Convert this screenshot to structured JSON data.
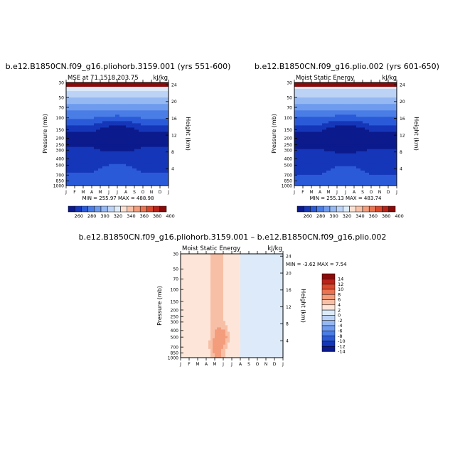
{
  "panels": [
    {
      "title": "b.e12.B1850CN.f09_g16.pliohorb.3159.001 (yrs 551-600)",
      "left_string": "MSE at 71.1518,203.75",
      "right_string": "kJ/kg",
      "ylabel": "Pressure (mb)",
      "ylabel_right": "Height (km)",
      "minmax": "MIN = 255.97   MAX = 488.98"
    },
    {
      "title": "b.e12.B1850CN.f09_g16.plio.002 (yrs 601-650)",
      "left_string": "Moist Static Energy",
      "right_string": "kJ/kg",
      "ylabel": "Pressure (mb)",
      "ylabel_right": "Height (km)",
      "minmax": "MIN = 255.13   MAX = 483.74"
    },
    {
      "title": "b.e12.B1850CN.f09_g16.pliohorb.3159.001 – b.e12.B1850CN.f09_g16.plio.002",
      "left_string": "Moist Static Energy",
      "right_string": "kJ/kg",
      "ylabel": "Pressure (mb)",
      "ylabel_right": "Height (km)",
      "minmax": "MIN =  -3.62  MAX =    7.54"
    }
  ],
  "chart_data": [
    {
      "type": "heatmap",
      "title": "b.e12.B1850CN.f09_g16.pliohorb.3159.001 (yrs 551-600)",
      "x_months": [
        "J",
        "F",
        "M",
        "A",
        "M",
        "J",
        "J",
        "A",
        "S",
        "O",
        "N",
        "D",
        "J"
      ],
      "y_pressure_ticks": [
        "30",
        "50",
        "70",
        "100",
        "150",
        "200",
        "250",
        "300",
        "400",
        "500",
        "700",
        "850",
        "1000"
      ],
      "y_height_ticks": [
        "24",
        "20",
        "16",
        "12",
        "8",
        "4"
      ],
      "ylim_mb": [
        1000,
        30
      ],
      "units": "kJ/kg",
      "min": 255.97,
      "max": 488.98,
      "levels": [
        260,
        280,
        300,
        320,
        340,
        360,
        380,
        400
      ],
      "pattern": "MSE increases with height; mid-troposphere minimum deepest in Jun-Jul",
      "colorbar_labels": [
        "260",
        "280",
        "300",
        "320",
        "340",
        "360",
        "380",
        "400"
      ]
    },
    {
      "type": "heatmap",
      "title": "b.e12.B1850CN.f09_g16.plio.002 (yrs 601-650)",
      "x_months": [
        "J",
        "F",
        "M",
        "A",
        "M",
        "J",
        "J",
        "A",
        "S",
        "O",
        "N",
        "D",
        "J"
      ],
      "y_pressure_ticks": [
        "30",
        "50",
        "70",
        "100",
        "150",
        "200",
        "250",
        "300",
        "400",
        "500",
        "700",
        "850",
        "1000"
      ],
      "y_height_ticks": [
        "24",
        "20",
        "16",
        "12",
        "8",
        "4"
      ],
      "ylim_mb": [
        1000,
        30
      ],
      "units": "kJ/kg",
      "min": 255.13,
      "max": 483.74,
      "levels": [
        260,
        280,
        300,
        320,
        340,
        360,
        380,
        400
      ],
      "colorbar_labels": [
        "260",
        "280",
        "300",
        "320",
        "340",
        "360",
        "380",
        "400"
      ]
    },
    {
      "type": "heatmap",
      "title": "b.e12.B1850CN.f09_g16.pliohorb.3159.001 – b.e12.B1850CN.f09_g16.plio.002",
      "x_months": [
        "J",
        "F",
        "M",
        "A",
        "M",
        "J",
        "J",
        "A",
        "S",
        "O",
        "N",
        "D",
        "J"
      ],
      "y_pressure_ticks": [
        "30",
        "50",
        "70",
        "100",
        "150",
        "200",
        "250",
        "300",
        "400",
        "500",
        "700",
        "850",
        "1000"
      ],
      "y_height_ticks": [
        "24",
        "20",
        "16",
        "12",
        "8",
        "4"
      ],
      "ylim_mb": [
        1000,
        30
      ],
      "units": "kJ/kg",
      "min": -3.62,
      "max": 7.54,
      "levels": [
        -14,
        -12,
        -10,
        -8,
        -6,
        -4,
        -2,
        0,
        2,
        4,
        6,
        8,
        10,
        12,
        14
      ],
      "colorbar_labels": [
        "14",
        "12",
        "10",
        "8",
        "6",
        "4",
        "2",
        "0",
        "-2",
        "-4",
        "-6",
        "-8",
        "-10",
        "-12",
        "-14"
      ]
    }
  ],
  "colors": {
    "main_scale": [
      "#0b1a8c",
      "#1536b8",
      "#2b5ad8",
      "#4a7de6",
      "#6f9bee",
      "#96b8f2",
      "#bcd3f6",
      "#ddeaf9",
      "#fbe0d2",
      "#f7c0a6",
      "#f39d7c",
      "#ea7452",
      "#d9482c",
      "#b9231a",
      "#8a0a0a"
    ],
    "diff_scale": [
      "#0b1a8c",
      "#1536b8",
      "#2b5ad8",
      "#4a7de6",
      "#6f9bee",
      "#96b8f2",
      "#bcd3f6",
      "#ddeaf9",
      "#fde6d9",
      "#f7c0a6",
      "#f39d7c",
      "#ea7452",
      "#d9482c",
      "#b9231a",
      "#8a0a0a"
    ]
  }
}
